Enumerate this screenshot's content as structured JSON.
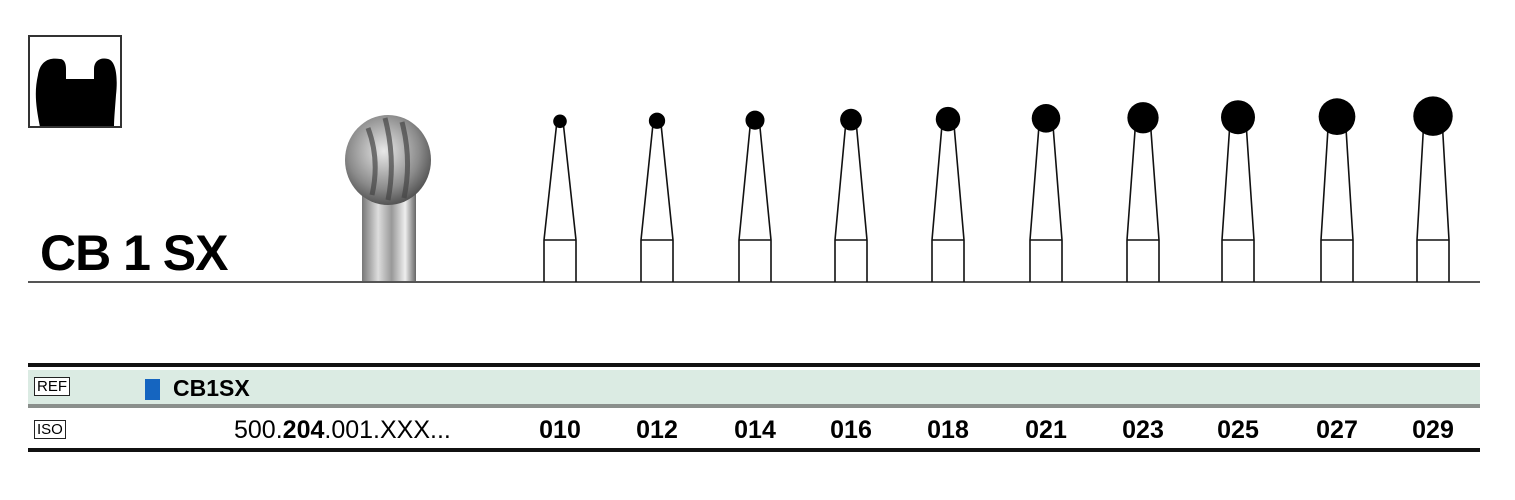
{
  "product": {
    "name": "CB 1 SX",
    "shape_icon": "cavity-preparation-icon"
  },
  "table": {
    "ref_label": "REF",
    "ref_color": "#1565c0",
    "ref_value": "CB1SX",
    "iso_label": "ISO",
    "iso_prefix": "500.",
    "iso_bold": "204",
    "iso_suffix": ".001.XXX...",
    "sizes": [
      "010",
      "012",
      "014",
      "016",
      "018",
      "021",
      "023",
      "025",
      "027",
      "029"
    ]
  },
  "colors": {
    "ref_row_background": "#dbebe3",
    "rule": "#111111"
  }
}
